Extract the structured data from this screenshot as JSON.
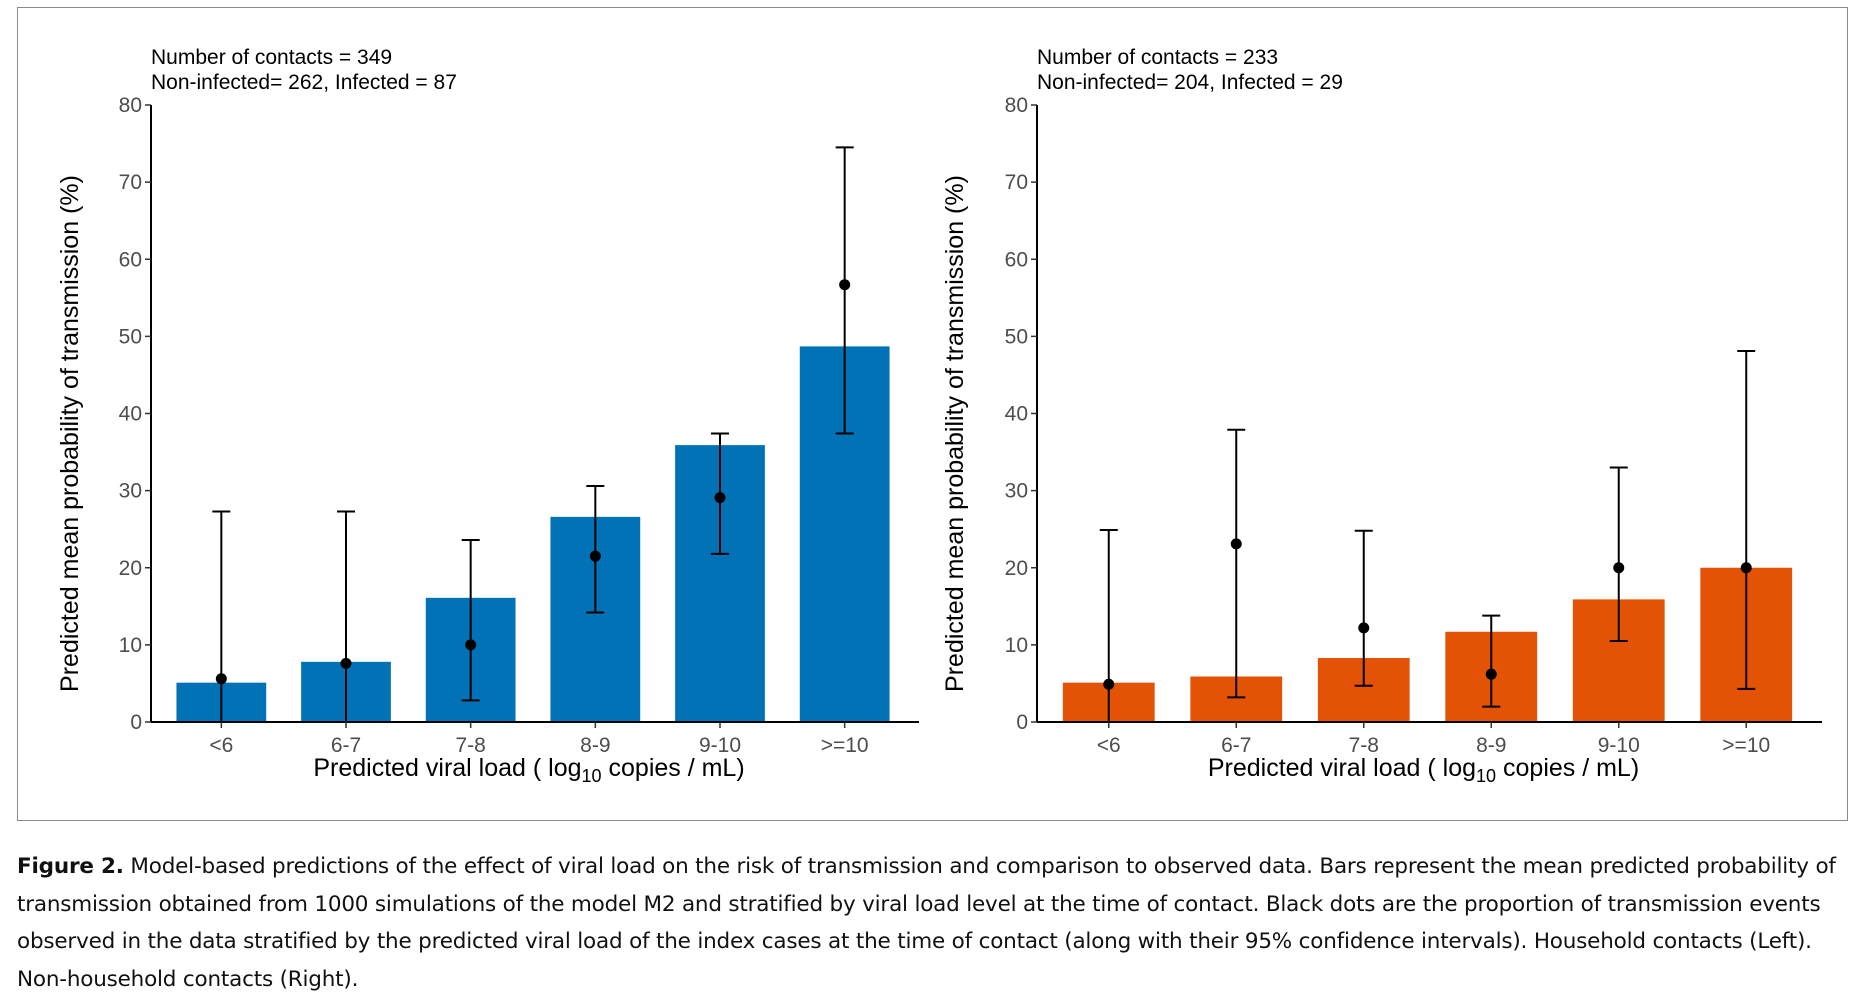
{
  "caption": {
    "label": "Figure 2.",
    "text": "Model-based predictions of the effect of viral load on the risk of transmission and comparison to observed data. Bars represent the mean predicted probability of transmission obtained from 1000 simulations of the model M2 and stratified by viral load level at the time of contact. Black dots are the proportion of transmission events observed in the data stratified by the predicted viral load of the index cases at the time of contact (along with their 95% confidence intervals). Household contacts (Left). Non-household contacts (Right)."
  },
  "chart_data": [
    {
      "type": "bar",
      "panel": "left",
      "subtitle": "Household contacts",
      "annotation_lines": [
        "Number of contacts = 349",
        "Non-infected= 262, Infected = 87"
      ],
      "categories": [
        "<6",
        "6-7",
        "7-8",
        "8-9",
        "9-10",
        ">=10"
      ],
      "xlabel_parts": [
        "Predicted viral load ( log",
        "10",
        " copies / mL)"
      ],
      "ylabel": "Predicted mean probability of transmission  (%)",
      "ylim": [
        0,
        80
      ],
      "yticks": [
        0,
        10,
        20,
        30,
        40,
        50,
        60,
        70,
        80
      ],
      "grid": false,
      "bar_color": "#0072B5",
      "series": [
        {
          "name": "Predicted mean probability (model M2)",
          "kind": "bar",
          "values": [
            5.1,
            7.8,
            16.1,
            26.6,
            35.9,
            48.7
          ]
        },
        {
          "name": "Observed proportion",
          "kind": "point",
          "values": [
            5.6,
            7.6,
            10.0,
            21.5,
            29.1,
            56.7
          ],
          "ci_low": [
            0.0,
            0.0,
            2.8,
            14.2,
            21.8,
            37.4
          ],
          "ci_high": [
            27.3,
            27.3,
            23.6,
            30.6,
            37.4,
            74.5
          ]
        }
      ]
    },
    {
      "type": "bar",
      "panel": "right",
      "subtitle": "Non-household contacts",
      "annotation_lines": [
        "Number of contacts = 233",
        "Non-infected= 204, Infected = 29"
      ],
      "categories": [
        "<6",
        "6-7",
        "7-8",
        "8-9",
        "9-10",
        ">=10"
      ],
      "xlabel_parts": [
        "Predicted viral load ( log",
        "10",
        " copies / mL)"
      ],
      "ylabel": "Predicted mean probability of transmission  (%)",
      "ylim": [
        0,
        80
      ],
      "yticks": [
        0,
        10,
        20,
        30,
        40,
        50,
        60,
        70,
        80
      ],
      "grid": false,
      "bar_color": "#E35205",
      "series": [
        {
          "name": "Predicted mean probability (model M2)",
          "kind": "bar",
          "values": [
            5.1,
            5.9,
            8.3,
            11.7,
            15.9,
            20.0
          ]
        },
        {
          "name": "Observed proportion",
          "kind": "point",
          "values": [
            4.9,
            23.1,
            12.2,
            6.2,
            20.0,
            20.0
          ],
          "ci_low": [
            0.0,
            3.2,
            4.7,
            2.0,
            10.5,
            4.3
          ],
          "ci_high": [
            24.9,
            37.9,
            24.8,
            13.8,
            33.0,
            48.1
          ]
        }
      ]
    }
  ]
}
